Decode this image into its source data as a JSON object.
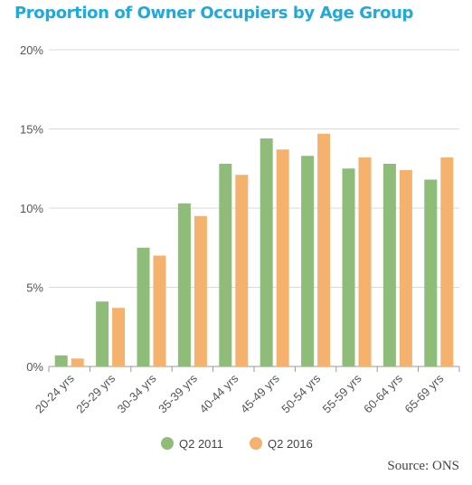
{
  "chart_data": {
    "type": "bar",
    "title": "Proportion of Owner Occupiers by Age Group",
    "categories": [
      "20-24 yrs",
      "25-29 yrs",
      "30-34 yrs",
      "35-39 yrs",
      "40-44 yrs",
      "45-49 yrs",
      "50-54 yrs",
      "55-59 yrs",
      "60-64 yrs",
      "65-69 yrs"
    ],
    "series": [
      {
        "name": "Q2 2011",
        "color": "#8fbc78",
        "values": [
          0.7,
          4.1,
          7.5,
          10.3,
          12.8,
          14.4,
          13.3,
          12.5,
          12.8,
          11.8
        ]
      },
      {
        "name": "Q2 2016",
        "color": "#f4b26e",
        "values": [
          0.5,
          3.7,
          7.0,
          9.5,
          12.1,
          13.7,
          14.7,
          13.2,
          12.4,
          13.2
        ]
      }
    ],
    "ylim": [
      0,
      20
    ],
    "yticks": [
      0,
      5,
      10,
      15,
      20
    ],
    "ytick_labels": [
      "0%",
      "5%",
      "10%",
      "15%",
      "20%"
    ],
    "grid": true,
    "legend": "bottom-center",
    "source": "Source: ONS"
  }
}
